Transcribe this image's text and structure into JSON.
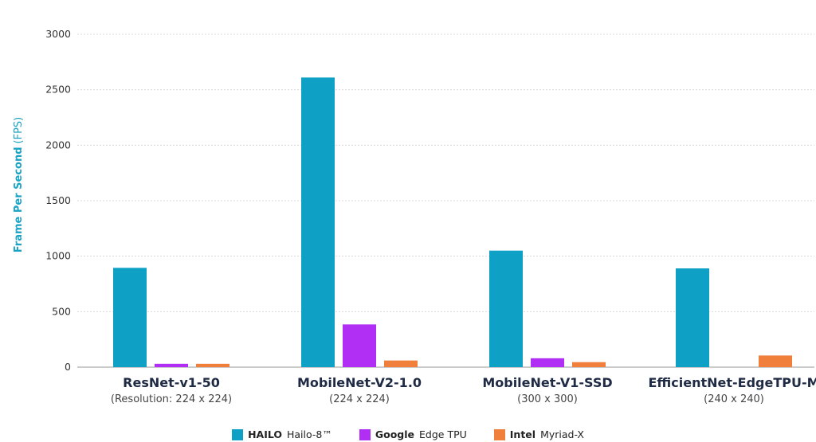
{
  "chart_data": {
    "type": "bar",
    "ylabel_bold": "Frame Per Second",
    "ylabel_unit": "(FPS)",
    "ylim": [
      0,
      3000
    ],
    "yticks": [
      "0",
      "500",
      "1000",
      "1500",
      "2000",
      "2500",
      "3000"
    ],
    "grid": true,
    "legend_position": "bottom",
    "categories": [
      {
        "name": "ResNet-v1-50",
        "sub": "(Resolution: 224 x 224)"
      },
      {
        "name": "MobileNet-V2-1.0",
        "sub": "(224 x 224)"
      },
      {
        "name": "MobileNet-V1-SSD",
        "sub": "(300 x 300)"
      },
      {
        "name": "EfficientNet-EdgeTPU-M",
        "sub": "(240 x 240)"
      }
    ],
    "series": [
      {
        "brand": "HAILO",
        "name": "Hailo-8™",
        "color": "#0fa0c6",
        "values": [
          895,
          2610,
          1050,
          890
        ]
      },
      {
        "brand": "Google",
        "name": "Edge TPU",
        "color": "#b12ff5",
        "values": [
          30,
          385,
          80,
          null
        ]
      },
      {
        "brand": "Intel",
        "name": "Myriad-X",
        "color": "#ef7f3b",
        "values": [
          30,
          60,
          45,
          105
        ]
      }
    ]
  }
}
